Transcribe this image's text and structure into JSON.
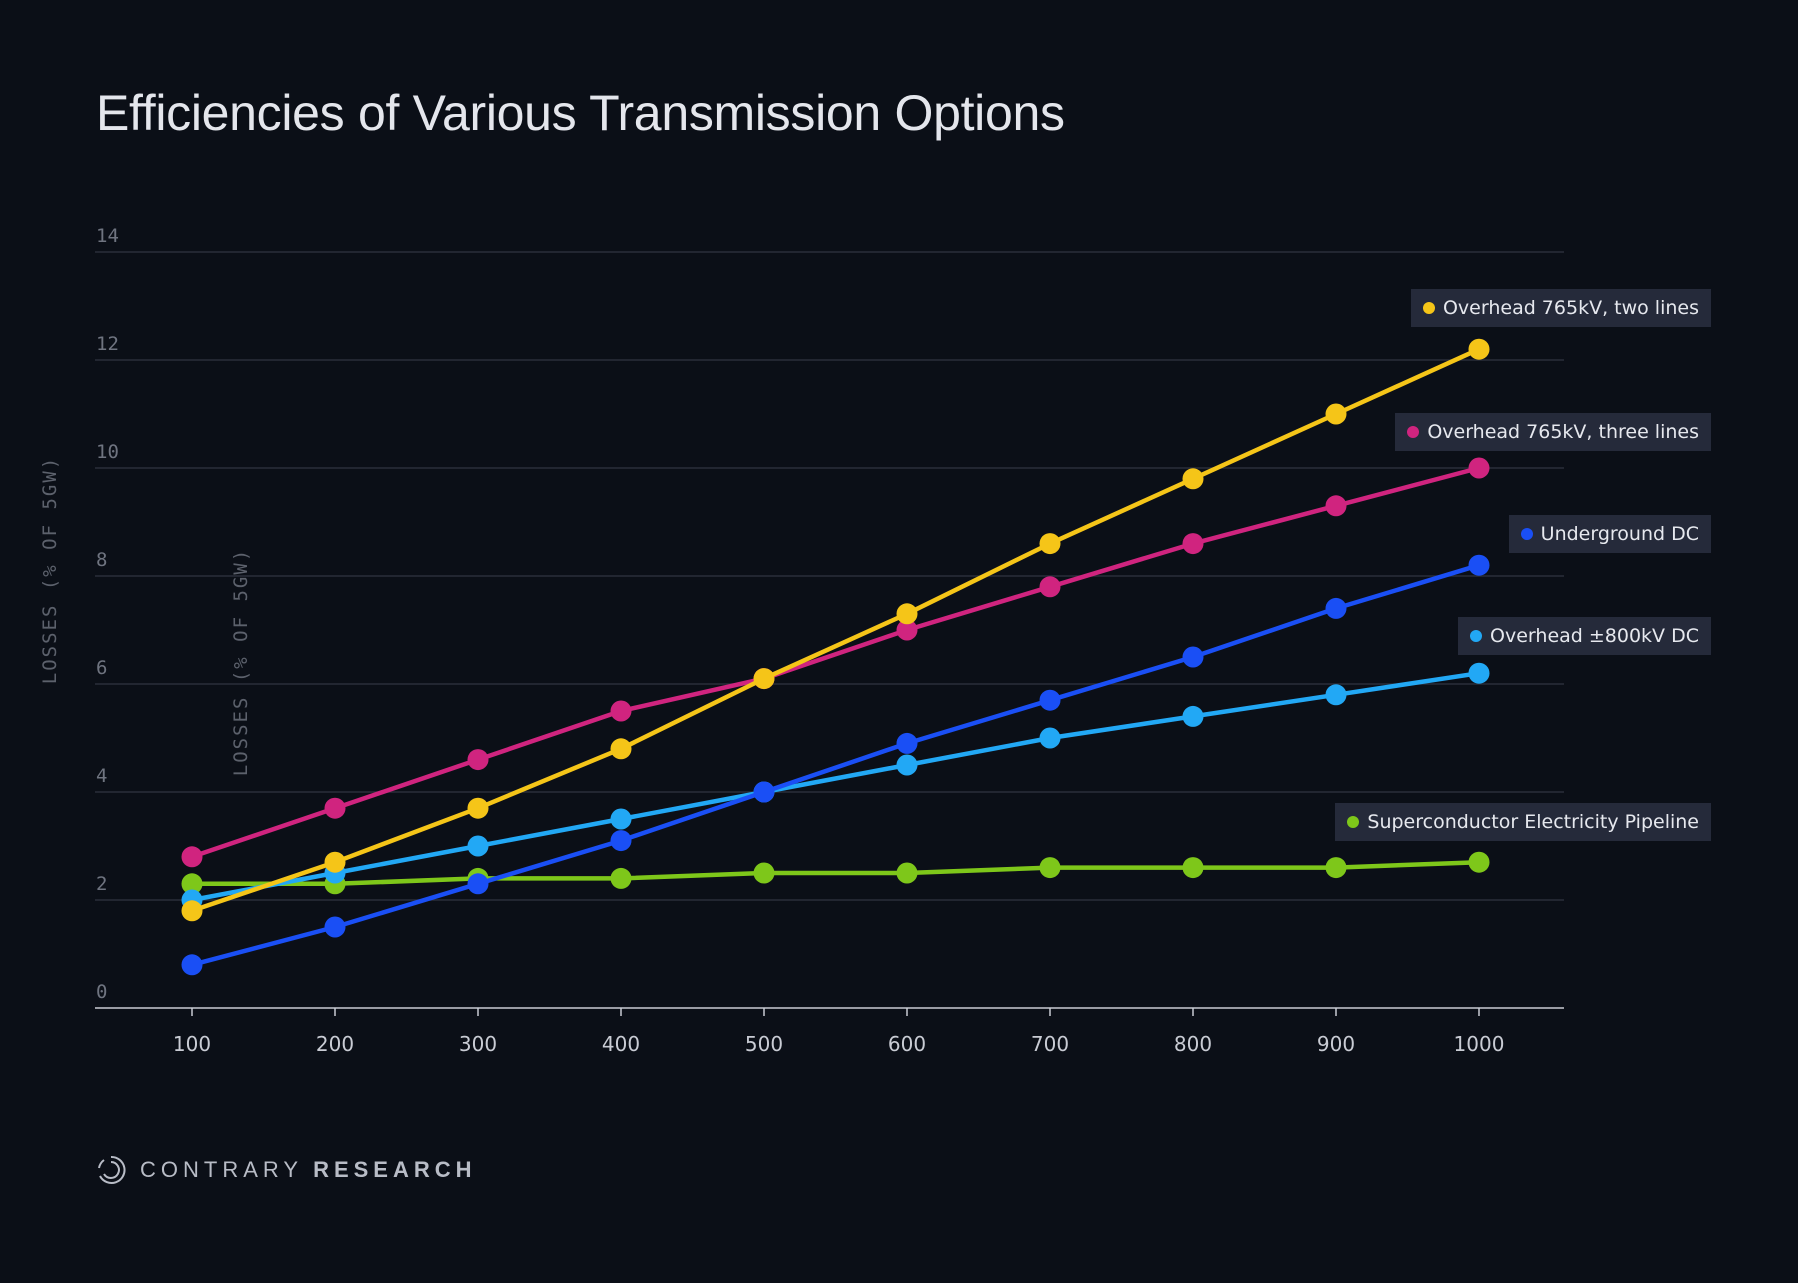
{
  "chart_data": {
    "type": "line",
    "title": "Efficiencies of Various Transmission Options",
    "xlabel": "",
    "ylabel": "LOSSES (% OF 5GW)",
    "x": [
      100,
      200,
      300,
      400,
      500,
      600,
      700,
      800,
      900,
      1000
    ],
    "x_ticks": [
      "100",
      "200",
      "300",
      "400",
      "500",
      "600",
      "700",
      "800",
      "900",
      "1000"
    ],
    "y_ticks": [
      "0",
      "2",
      "4",
      "6",
      "8",
      "10",
      "12",
      "14"
    ],
    "ylim": [
      0,
      14
    ],
    "xlim": [
      35,
      1055
    ],
    "grid": "horizontal",
    "legend": "inline-right",
    "series": [
      {
        "name": "Overhead 765kV, two lines",
        "color": "#f5c518",
        "values": [
          1.8,
          2.7,
          3.7,
          4.8,
          6.1,
          7.3,
          8.6,
          9.8,
          11.0,
          12.2
        ]
      },
      {
        "name": "Overhead 765kV, three lines",
        "color": "#d0247f",
        "values": [
          2.8,
          3.7,
          4.6,
          5.5,
          6.1,
          7.0,
          7.8,
          8.6,
          9.3,
          10.0
        ]
      },
      {
        "name": "Underground DC",
        "color": "#1a4ff5",
        "values": [
          0.8,
          1.5,
          2.3,
          3.1,
          4.0,
          4.9,
          5.7,
          6.5,
          7.4,
          8.2
        ]
      },
      {
        "name": "Overhead ±800kV DC",
        "color": "#22a8f5",
        "values": [
          2.0,
          2.5,
          3.0,
          3.5,
          4.0,
          4.5,
          5.0,
          5.4,
          5.8,
          6.2
        ]
      },
      {
        "name": "Superconductor Electricity Pipeline",
        "color": "#7ec71a",
        "values": [
          2.3,
          2.3,
          2.4,
          2.4,
          2.5,
          2.5,
          2.6,
          2.6,
          2.6,
          2.7
        ]
      }
    ]
  },
  "brand": {
    "name_light": "CONTRARY",
    "name_bold": "RESEARCH"
  }
}
